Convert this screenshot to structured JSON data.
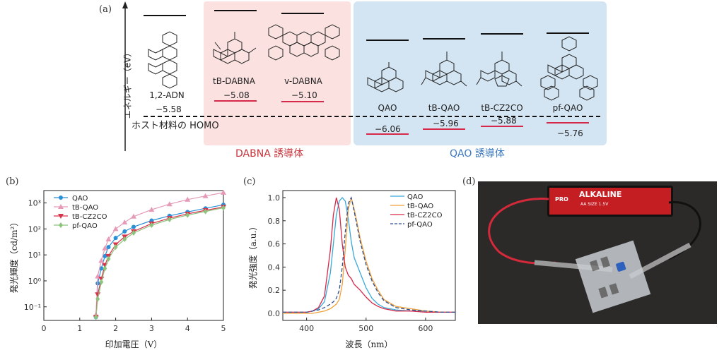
{
  "panel_a": {
    "label": "(a)",
    "y_axis": "エネルギー（eV）",
    "host_homo": "ホスト材料の HOMO",
    "group_dabna": {
      "caption": "DABNA 誘導体",
      "color": "#c8333b",
      "bg": "#fbe2e1"
    },
    "group_qao": {
      "caption": "QAO 誘導体",
      "color": "#3b78c0",
      "bg": "#d3e4f2"
    },
    "molecules": [
      {
        "name": "1,2-ADN",
        "homo": "−5.58"
      },
      {
        "name": "tB-DABNA",
        "homo": "−5.08"
      },
      {
        "name": "v-DABNA",
        "homo": "−5.10"
      },
      {
        "name": "QAO",
        "homo": "−6.06"
      },
      {
        "name": "tB-QAO",
        "homo": "−5.96"
      },
      {
        "name": "tB-CZ2CO",
        "homo": "−5.88"
      },
      {
        "name": "pf-QAO",
        "homo": "−5.76"
      }
    ]
  },
  "panel_b_label": "(b)",
  "panel_c_label": "(c)",
  "panel_d_label": "(d)",
  "photo": {
    "battery_brand": "ALKALINE",
    "battery_size": "AA SIZE 1.5V",
    "battery_logo": "PRO"
  },
  "chart_data": [
    {
      "type": "line",
      "panel": "b",
      "xlabel": "印加電圧（V）",
      "ylabel": "発光輝度（cd/m²）",
      "xlim": [
        0,
        5
      ],
      "ylim": [
        0.03,
        3000
      ],
      "yscale": "log",
      "xticks": [
        "0",
        "1",
        "2",
        "3",
        "4",
        "5"
      ],
      "yticks": [
        "10⁻¹",
        "10⁰",
        "10¹",
        "10²",
        "10³"
      ],
      "x": [
        1.45,
        1.5,
        1.6,
        1.7,
        1.8,
        2.0,
        2.25,
        2.5,
        3.0,
        3.5,
        4.0,
        4.5,
        5.0
      ],
      "series": [
        {
          "name": "QAO",
          "color": "#2a8fd6",
          "marker": "circle",
          "values": [
            0.04,
            0.8,
            3,
            9,
            20,
            45,
            80,
            120,
            210,
            320,
            450,
            620,
            850
          ]
        },
        {
          "name": "tB-QAO",
          "color": "#e59ab8",
          "marker": "triangle-up",
          "values": [
            0.05,
            1.5,
            6,
            18,
            40,
            100,
            180,
            300,
            550,
            900,
            1350,
            1850,
            2500
          ]
        },
        {
          "name": "tB-CZ2CO",
          "color": "#d8334a",
          "marker": "triangle-down",
          "values": [
            0.04,
            0.3,
            1.2,
            4,
            9,
            25,
            50,
            80,
            160,
            260,
            380,
            520,
            700
          ]
        },
        {
          "name": "pf-QAO",
          "color": "#8cc37d",
          "marker": "diamond",
          "values": [
            0.04,
            0.2,
            0.9,
            3,
            7,
            20,
            40,
            70,
            140,
            230,
            340,
            470,
            650
          ]
        }
      ]
    },
    {
      "type": "line",
      "panel": "c",
      "xlabel": "波長（nm）",
      "ylabel": "発光強度（a.u.）",
      "xlim": [
        350,
        650
      ],
      "ylim": [
        0,
        1.0
      ],
      "xticks": [
        "400",
        "500",
        "600"
      ],
      "yticks": [
        "0.0",
        "0.2",
        "0.4",
        "0.6",
        "0.8",
        "1.0"
      ],
      "x": [
        360,
        380,
        400,
        410,
        420,
        430,
        440,
        445,
        450,
        455,
        460,
        465,
        470,
        475,
        480,
        490,
        500,
        510,
        520,
        530,
        550,
        575,
        600,
        625,
        650
      ],
      "series": [
        {
          "name": "QAO",
          "color": "#38a8d8",
          "dash": "solid",
          "values": [
            0.01,
            0.01,
            0.01,
            0.02,
            0.04,
            0.1,
            0.35,
            0.6,
            0.85,
            0.97,
            1.0,
            0.97,
            0.82,
            0.62,
            0.48,
            0.35,
            0.22,
            0.13,
            0.08,
            0.05,
            0.03,
            0.02,
            0.02,
            0.01,
            0.01
          ]
        },
        {
          "name": "tB-QAO",
          "color": "#f0a23b",
          "dash": "solid",
          "values": [
            0.0,
            0.0,
            0.0,
            0.0,
            0.01,
            0.02,
            0.04,
            0.06,
            0.08,
            0.12,
            0.25,
            0.55,
            0.9,
            1.0,
            0.9,
            0.65,
            0.45,
            0.3,
            0.2,
            0.12,
            0.06,
            0.04,
            0.02,
            0.01,
            0.01
          ]
        },
        {
          "name": "tB-CZ2CO",
          "color": "#d6294a",
          "dash": "solid",
          "values": [
            0.01,
            0.01,
            0.01,
            0.02,
            0.05,
            0.15,
            0.55,
            0.85,
            1.0,
            0.9,
            0.6,
            0.4,
            0.33,
            0.3,
            0.25,
            0.2,
            0.14,
            0.09,
            0.06,
            0.04,
            0.02,
            0.02,
            0.01,
            0.01,
            0.01
          ]
        },
        {
          "name": "pf-QAO",
          "color": "#2f4e8f",
          "dash": "dashed",
          "values": [
            0.01,
            0.01,
            0.01,
            0.02,
            0.03,
            0.05,
            0.08,
            0.1,
            0.13,
            0.2,
            0.4,
            0.7,
            0.95,
            1.0,
            0.88,
            0.62,
            0.42,
            0.28,
            0.18,
            0.11,
            0.05,
            0.03,
            0.02,
            0.01,
            0.01
          ]
        }
      ]
    }
  ]
}
